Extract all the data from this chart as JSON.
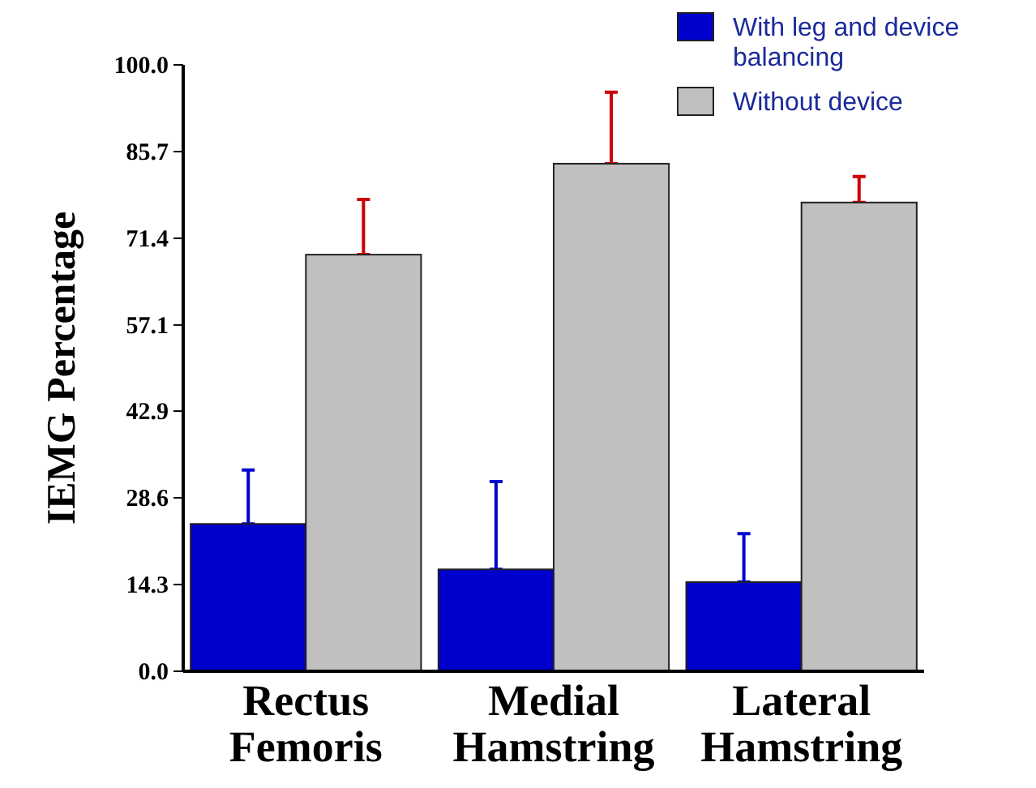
{
  "chart_data": {
    "type": "bar",
    "ylabel": "IEMG Percentage",
    "categories": [
      "Rectus Femoris",
      "Medial Hamstring",
      "Lateral Hamstring"
    ],
    "series": [
      {
        "name": "With leg and device balancing",
        "color": "#0000cc",
        "values": [
          24.3,
          16.8,
          14.7
        ],
        "errors": [
          [
            24.3,
            33.2
          ],
          [
            16.8,
            31.3
          ],
          [
            14.7,
            22.7
          ]
        ]
      },
      {
        "name": "Without device",
        "color": "#c0c0c0",
        "values": [
          68.7,
          83.7,
          77.3
        ],
        "errors": [
          [
            68.7,
            77.8
          ],
          [
            83.7,
            95.5
          ],
          [
            77.3,
            81.6
          ]
        ]
      }
    ],
    "ylim": [
      0,
      100
    ],
    "yticks": [
      {
        "value": 0,
        "label": "0.0"
      },
      {
        "value": 14.3,
        "label": "14.3"
      },
      {
        "value": 28.6,
        "label": "28.6"
      },
      {
        "value": 42.9,
        "label": "42.9"
      },
      {
        "value": 57.1,
        "label": "57.1"
      },
      {
        "value": 71.4,
        "label": "71.4"
      },
      {
        "value": 85.7,
        "label": "85.7"
      },
      {
        "value": 100,
        "label": "100.0"
      }
    ],
    "grid": false,
    "legend": "top right"
  }
}
